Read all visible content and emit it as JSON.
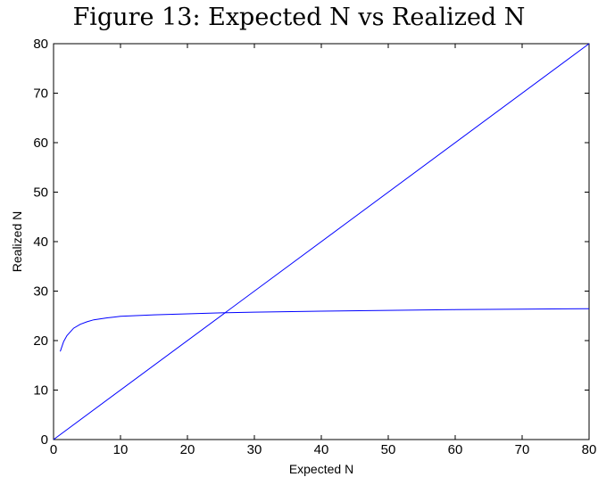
{
  "figure_title": "Figure 13: Expected N vs Realized N",
  "chart_data": {
    "type": "line",
    "title": "Figure 13: Expected N vs Realized N",
    "xlabel": "Expected N",
    "ylabel": "Realized N",
    "xlim": [
      0,
      80
    ],
    "ylim": [
      0,
      80
    ],
    "xticks": [
      0,
      10,
      20,
      30,
      40,
      50,
      60,
      70,
      80
    ],
    "yticks": [
      0,
      10,
      20,
      30,
      40,
      50,
      60,
      70,
      80
    ],
    "grid": false,
    "legend": false,
    "colors": {
      "line": "#0000ff",
      "axes": "#000000"
    },
    "series": [
      {
        "x": [
          0,
          80
        ],
        "y": [
          0,
          80
        ]
      },
      {
        "x": [
          1,
          1.5,
          2,
          3,
          4,
          5,
          6,
          8,
          10,
          15,
          20,
          25,
          30,
          40,
          50,
          60,
          70,
          80
        ],
        "y": [
          17.8,
          19.8,
          21.0,
          22.5,
          23.3,
          23.8,
          24.2,
          24.6,
          24.9,
          25.2,
          25.4,
          25.6,
          25.75,
          25.95,
          26.1,
          26.25,
          26.35,
          26.45
        ]
      }
    ]
  }
}
